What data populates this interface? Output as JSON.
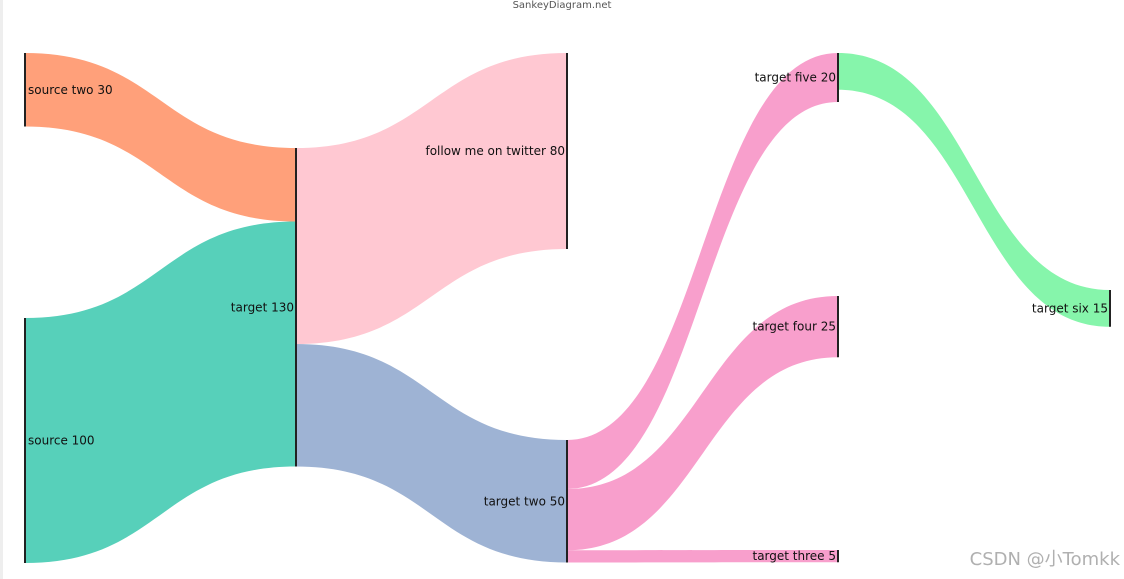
{
  "header": {
    "site": "SankeyDiagram.net"
  },
  "watermark": {
    "text": "CSDN @小Tomkk"
  },
  "chart_data": {
    "type": "sankey",
    "nodes": [
      {
        "id": "source_two",
        "label": "source two 30",
        "value": 30,
        "column": 0,
        "color": "#222222"
      },
      {
        "id": "source",
        "label": "source 100",
        "value": 100,
        "column": 0,
        "color": "#222222"
      },
      {
        "id": "target",
        "label": "target 130",
        "value": 130,
        "column": 1,
        "color": "#222222"
      },
      {
        "id": "follow",
        "label": "follow me on twitter 80",
        "value": 80,
        "column": 2,
        "color": "#222222"
      },
      {
        "id": "target_two",
        "label": "target two 50",
        "value": 50,
        "column": 2,
        "color": "#222222"
      },
      {
        "id": "target_five",
        "label": "target five 20",
        "value": 20,
        "column": 3,
        "color": "#222222"
      },
      {
        "id": "target_four",
        "label": "target four 25",
        "value": 25,
        "column": 3,
        "color": "#222222"
      },
      {
        "id": "target_three",
        "label": "target three 5",
        "value": 5,
        "column": 3,
        "color": "#222222"
      },
      {
        "id": "target_six",
        "label": "target six 15",
        "value": 15,
        "column": 4,
        "color": "#222222"
      }
    ],
    "links": [
      {
        "source": "source_two",
        "target": "target",
        "value": 30,
        "color": "#FFA07A"
      },
      {
        "source": "source",
        "target": "target",
        "value": 100,
        "color": "#57D0BA"
      },
      {
        "source": "target",
        "target": "follow",
        "value": 80,
        "color": "#FFC8D2"
      },
      {
        "source": "target",
        "target": "target_two",
        "value": 50,
        "color": "#9EB3D4"
      },
      {
        "source": "target_two",
        "target": "target_five",
        "value": 20,
        "color": "#F89FCC"
      },
      {
        "source": "target_two",
        "target": "target_four",
        "value": 25,
        "color": "#F89FCC"
      },
      {
        "source": "target_two",
        "target": "target_three",
        "value": 5,
        "color": "#F89FCC"
      },
      {
        "source": "target_five",
        "target": "target_six",
        "value": 15,
        "color": "#86F5AB"
      }
    ]
  }
}
